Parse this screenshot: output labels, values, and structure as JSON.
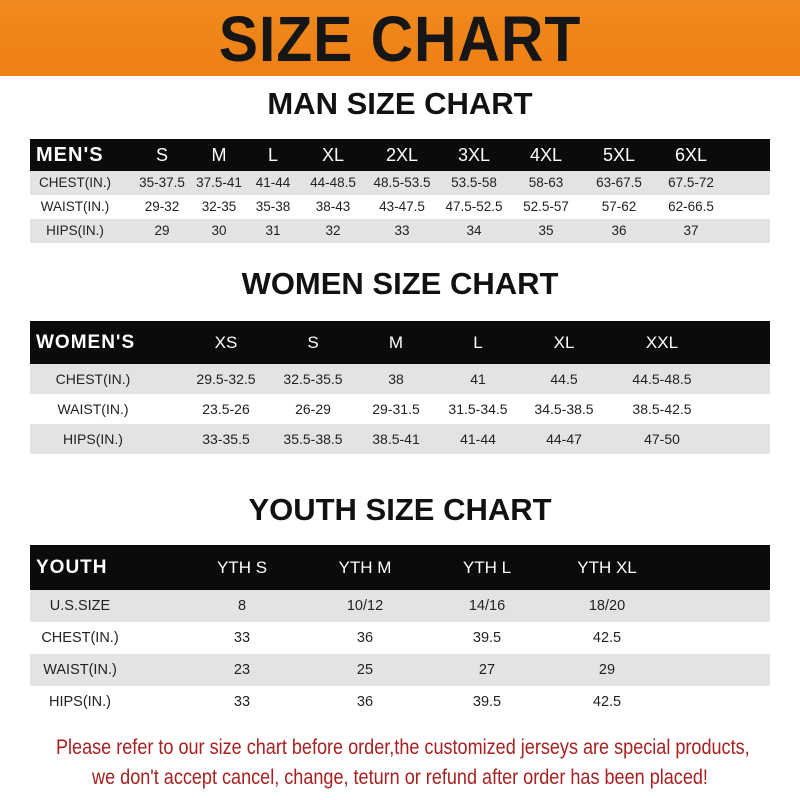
{
  "banner": {
    "title": "SIZE CHART",
    "color": "#ef8419"
  },
  "men": {
    "title": "MAN SIZE CHART",
    "header_label": "MEN'S",
    "sizes": [
      "S",
      "M",
      "L",
      "XL",
      "2XL",
      "3XL",
      "4XL",
      "5XL",
      "6XL"
    ],
    "rows": [
      {
        "label": "CHEST(IN.)",
        "values": [
          "35-37.5",
          "37.5-41",
          "41-44",
          "44-48.5",
          "48.5-53.5",
          "53.5-58",
          "58-63",
          "63-67.5",
          "67.5-72"
        ]
      },
      {
        "label": "WAIST(IN.)",
        "values": [
          "29-32",
          "32-35",
          "35-38",
          "38-43",
          "43-47.5",
          "47.5-52.5",
          "52.5-57",
          "57-62",
          "62-66.5"
        ]
      },
      {
        "label": "HIPS(IN.)",
        "values": [
          "29",
          "30",
          "31",
          "32",
          "33",
          "34",
          "35",
          "36",
          "37"
        ]
      }
    ]
  },
  "women": {
    "title": "WOMEN SIZE CHART",
    "header_label": "WOMEN'S",
    "sizes": [
      "XS",
      "S",
      "M",
      "L",
      "XL",
      "XXL"
    ],
    "rows": [
      {
        "label": "CHEST(IN.)",
        "values": [
          "29.5-32.5",
          "32.5-35.5",
          "38",
          "41",
          "44.5",
          "44.5-48.5"
        ]
      },
      {
        "label": "WAIST(IN.)",
        "values": [
          "23.5-26",
          "26-29",
          "29-31.5",
          "31.5-34.5",
          "34.5-38.5",
          "38.5-42.5"
        ]
      },
      {
        "label": "HIPS(IN.)",
        "values": [
          "33-35.5",
          "35.5-38.5",
          "38.5-41",
          "41-44",
          "44-47",
          "47-50"
        ]
      }
    ]
  },
  "youth": {
    "title": "YOUTH SIZE CHART",
    "header_label": "YOUTH",
    "sizes": [
      "YTH S",
      "YTH M",
      "YTH L",
      "YTH XL"
    ],
    "rows": [
      {
        "label": "U.S.SIZE",
        "values": [
          "8",
          "10/12",
          "14/16",
          "18/20"
        ]
      },
      {
        "label": "CHEST(IN.)",
        "values": [
          "33",
          "36",
          "39.5",
          "42.5"
        ]
      },
      {
        "label": "WAIST(IN.)",
        "values": [
          "23",
          "25",
          "27",
          "29"
        ]
      },
      {
        "label": "HIPS(IN.)",
        "values": [
          "33",
          "36",
          "39.5",
          "42.5"
        ]
      }
    ]
  },
  "footer": {
    "line1": "Please refer to our size chart before order,the customized jerseys are special products,",
    "line2": "we don't accept cancel, change, teturn or refund after order has been placed!",
    "color": "#a82020"
  }
}
